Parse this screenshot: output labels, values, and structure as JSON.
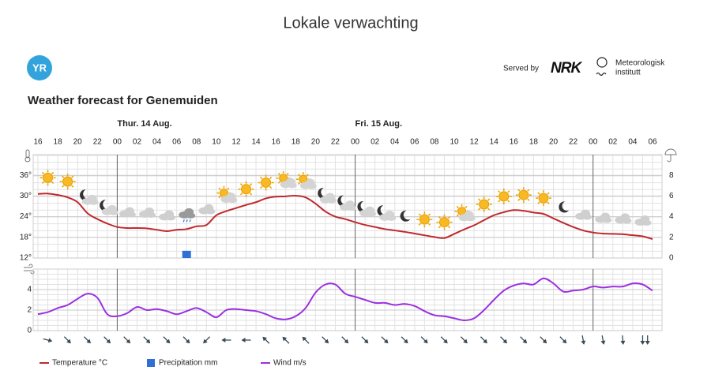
{
  "header": {
    "title": "Lokale verwachting",
    "logo": "YR",
    "served_by": "Served by",
    "nrk": "NRK",
    "met_line1": "Meteorologisk",
    "met_line2": "institutt"
  },
  "heading": "Weather forecast for Genemuiden",
  "days": [
    "Thur. 14 Aug.",
    "Fri. 15 Aug."
  ],
  "chart_data": [
    {
      "type": "line",
      "categories": [
        "16",
        null,
        "18",
        null,
        "20",
        null,
        "22",
        null,
        "00",
        null,
        "02",
        null,
        "04",
        null,
        "06",
        null,
        "08",
        null,
        "10",
        null,
        "12",
        null,
        "14",
        null,
        "16",
        null,
        "18",
        null,
        "20",
        null,
        "22",
        null,
        "00",
        null,
        "02",
        null,
        "04",
        null,
        "06",
        null,
        "08",
        null,
        "10",
        null,
        "12",
        null,
        "14",
        null,
        "16",
        null,
        "18",
        null,
        "20",
        null,
        "22",
        null,
        "00",
        null,
        "02",
        null,
        "04",
        null,
        "06"
      ],
      "ylim": [
        12,
        42
      ],
      "yticks": [
        {
          "value": 12,
          "label": "12°"
        },
        {
          "value": 18,
          "label": "18°"
        },
        {
          "value": 24,
          "label": "24°"
        },
        {
          "value": 30,
          "label": "30°"
        },
        {
          "value": 36,
          "label": "36°"
        }
      ],
      "y2lim": [
        0,
        10
      ],
      "y2ticks": [
        0,
        2,
        4,
        6,
        8
      ],
      "grid": true,
      "series": [
        {
          "name": "Temperature °C",
          "color": "#c0282d",
          "type": "line",
          "values": [
            30.6,
            30.7,
            30.3,
            29.6,
            28.2,
            25.0,
            23.3,
            22.0,
            21.0,
            20.7,
            20.7,
            20.6,
            20.2,
            19.8,
            20.2,
            20.4,
            21.2,
            21.6,
            24.4,
            25.6,
            26.5,
            27.4,
            28.2,
            29.3,
            29.8,
            29.9,
            30.1,
            29.6,
            27.8,
            25.5,
            24.0,
            23.3,
            22.4,
            21.6,
            21.0,
            20.4,
            20.0,
            19.6,
            19.1,
            18.6,
            18.1,
            17.8,
            19.0,
            20.3,
            21.5,
            23.0,
            24.4,
            25.3,
            25.9,
            25.7,
            25.2,
            24.8,
            23.5,
            22.2,
            21.0,
            20.0,
            19.4,
            19.1,
            19.0,
            18.9,
            18.6,
            18.3,
            17.5
          ]
        },
        {
          "name": "Precipitation mm",
          "color": "#2f6fd6",
          "type": "bar",
          "axis": "y2",
          "values": [
            0,
            0,
            0,
            0,
            0,
            0,
            0,
            0,
            0,
            0,
            0,
            0,
            0,
            0,
            0,
            0.7,
            0,
            0,
            0,
            0,
            0,
            0,
            0,
            0,
            0,
            0,
            0,
            0,
            0,
            0,
            0,
            0,
            0,
            0,
            0,
            0,
            0,
            0,
            0,
            0,
            0,
            0,
            0,
            0,
            0,
            0,
            0,
            0,
            0,
            0,
            0,
            0,
            0,
            0,
            0,
            0,
            0,
            0,
            0,
            0,
            0,
            0,
            0
          ]
        }
      ]
    },
    {
      "type": "line",
      "ylim": [
        0,
        6
      ],
      "yticks": [
        0,
        2,
        4
      ],
      "grid": true,
      "series": [
        {
          "name": "Wind m/s",
          "color": "#9b30e0",
          "values": [
            1.6,
            1.8,
            2.2,
            2.5,
            3.1,
            3.6,
            3.2,
            1.6,
            1.4,
            1.7,
            2.3,
            2.0,
            2.1,
            1.9,
            1.6,
            1.9,
            2.2,
            1.8,
            1.3,
            2.0,
            2.1,
            2.0,
            1.9,
            1.6,
            1.2,
            1.1,
            1.4,
            2.2,
            3.7,
            4.5,
            4.5,
            3.6,
            3.3,
            3.0,
            2.7,
            2.7,
            2.5,
            2.6,
            2.4,
            1.9,
            1.5,
            1.4,
            1.2,
            1.0,
            1.2,
            2.0,
            3.0,
            3.9,
            4.4,
            4.6,
            4.5,
            5.1,
            4.6,
            3.8,
            3.9,
            4.0,
            4.3,
            4.2,
            4.3,
            4.3,
            4.6,
            4.5,
            3.9
          ]
        }
      ]
    }
  ]
}
